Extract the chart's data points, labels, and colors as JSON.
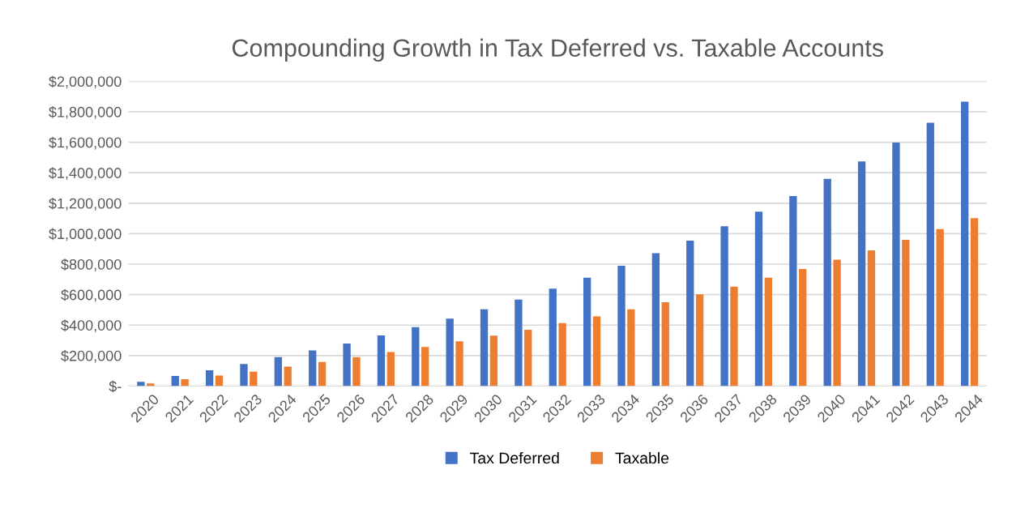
{
  "chart_data": {
    "type": "bar",
    "title": "Compounding Growth in Tax Deferred vs. Taxable Accounts",
    "categories": [
      "2020",
      "2021",
      "2022",
      "2023",
      "2024",
      "2025",
      "2026",
      "2027",
      "2028",
      "2029",
      "2030",
      "2031",
      "2032",
      "2033",
      "2034",
      "2035",
      "2036",
      "2037",
      "2038",
      "2039",
      "2040",
      "2041",
      "2042",
      "2043",
      "2044"
    ],
    "series": [
      {
        "name": "Tax Deferred",
        "color": "#4472c4",
        "values": [
          28000,
          67000,
          104000,
          145000,
          190000,
          234000,
          279000,
          333000,
          387000,
          443000,
          504000,
          568000,
          640000,
          711000,
          789000,
          872000,
          955000,
          1049000,
          1145000,
          1247000,
          1360000,
          1474000,
          1598000,
          1728000,
          1866000
        ]
      },
      {
        "name": "Taxable",
        "color": "#ed7d31",
        "values": [
          17000,
          45000,
          69000,
          95000,
          128000,
          158000,
          190000,
          223000,
          257000,
          294000,
          331000,
          370000,
          413000,
          457000,
          504000,
          551000,
          602000,
          653000,
          711000,
          768000,
          830000,
          891000,
          960000,
          1030000,
          1102000
        ]
      }
    ],
    "ylim": [
      0,
      2000000
    ],
    "yticks": [
      {
        "value": 0,
        "label": "$-"
      },
      {
        "value": 200000,
        "label": "$200,000"
      },
      {
        "value": 400000,
        "label": "$400,000"
      },
      {
        "value": 600000,
        "label": "$600,000"
      },
      {
        "value": 800000,
        "label": "$800,000"
      },
      {
        "value": 1000000,
        "label": "$1,000,000"
      },
      {
        "value": 1200000,
        "label": "$1,200,000"
      },
      {
        "value": 1400000,
        "label": "$1,400,000"
      },
      {
        "value": 1600000,
        "label": "$1,600,000"
      },
      {
        "value": 1800000,
        "label": "$1,800,000"
      },
      {
        "value": 2000000,
        "label": "$2,000,000"
      }
    ],
    "grid": "y",
    "legend": "bottom"
  }
}
